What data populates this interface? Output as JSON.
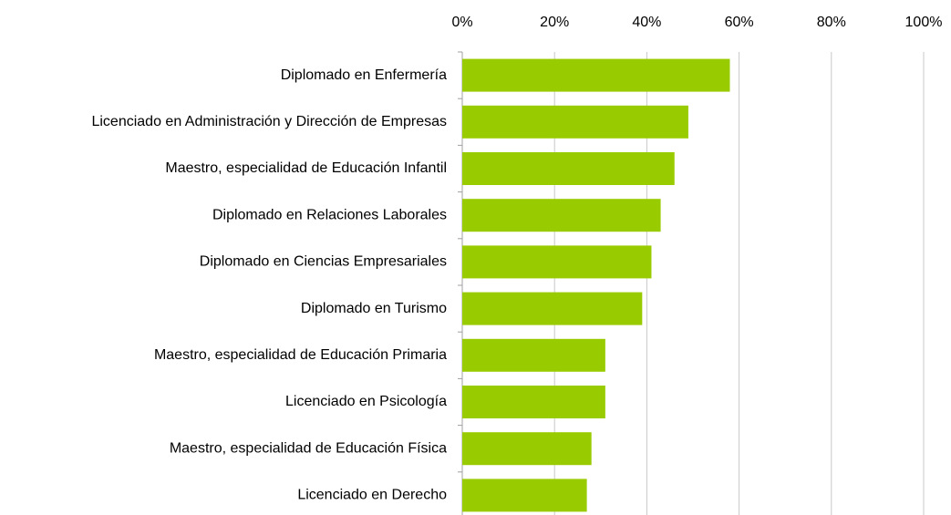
{
  "chart_data": {
    "type": "barh",
    "categories": [
      "Diplomado en Enfermería",
      "Licenciado en Administración y Dirección de Empresas",
      "Maestro, especialidad de Educación Infantil",
      "Diplomado en Relaciones Laborales",
      "Diplomado en Ciencias Empresariales",
      "Diplomado en Turismo",
      "Maestro, especialidad de Educación Primaria",
      "Licenciado en Psicología",
      "Maestro, especialidad de Educación Física",
      "Licenciado en Derecho"
    ],
    "values": [
      58,
      49,
      46,
      43,
      41,
      39,
      31,
      31,
      28,
      27
    ],
    "color": "#99cc00",
    "xlim": [
      0,
      100
    ],
    "xticks": [
      {
        "value": 0,
        "label": "0%"
      },
      {
        "value": 20,
        "label": "20%"
      },
      {
        "value": 40,
        "label": "40%"
      },
      {
        "value": 60,
        "label": "60%"
      },
      {
        "value": 80,
        "label": "80%"
      },
      {
        "value": 100,
        "label": "100%"
      }
    ],
    "grid": true
  }
}
